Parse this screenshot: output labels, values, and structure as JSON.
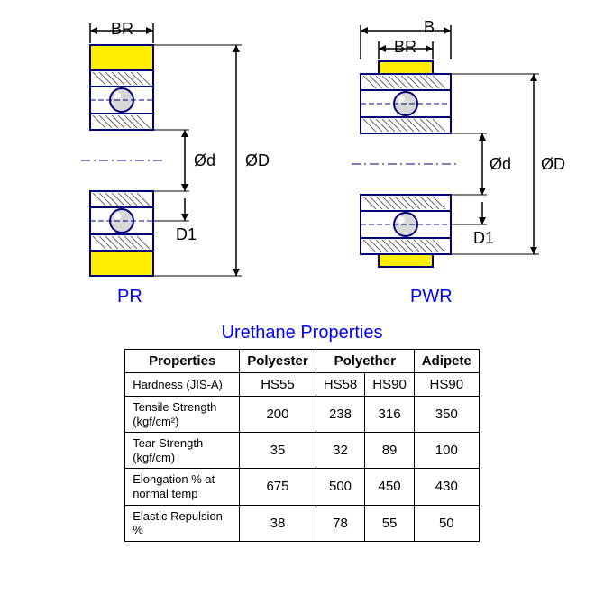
{
  "diagram_left": {
    "type_label": "PR",
    "labels": {
      "BR": "BR",
      "d": "Ød",
      "D": "ØD",
      "D1": "D1"
    },
    "colors": {
      "outline": "#00007a",
      "urethane": "#ffee00",
      "ball": "#c0c0c0",
      "hatch": "#666666",
      "dim": "#000000"
    },
    "stroke_width": 2
  },
  "diagram_right": {
    "type_label": "PWR",
    "labels": {
      "B": "B",
      "BR": "BR",
      "d": "Ød",
      "D": "ØD",
      "D1": "D1"
    },
    "colors": {
      "outline": "#00007a",
      "urethane": "#ffee00",
      "ball": "#c0c0c0",
      "hatch": "#666666",
      "dim": "#000000"
    },
    "stroke_width": 2
  },
  "table": {
    "title": "Urethane Properties",
    "header": [
      "Properties",
      "Polyester",
      "Polyether",
      "Adipete"
    ],
    "polyether_span": 2,
    "rows": [
      {
        "label": "Hardness (JIS-A)",
        "cells": [
          "HS55",
          "HS58",
          "HS90",
          "HS90"
        ]
      },
      {
        "label": "Tensile Strength (kgf/cm²)",
        "cells": [
          "200",
          "238",
          "316",
          "350"
        ]
      },
      {
        "label": "Tear Strength (kgf/cm)",
        "cells": [
          "35",
          "32",
          "89",
          "100"
        ]
      },
      {
        "label": "Elongation % at normal temp",
        "cells": [
          "675",
          "500",
          "450",
          "430"
        ]
      },
      {
        "label": "Elastic Repulsion %",
        "cells": [
          "38",
          "78",
          "55",
          "50"
        ]
      }
    ],
    "colors": {
      "border": "#000000",
      "title": "#0000ff",
      "text": "#000000",
      "bg": "#ffffff"
    },
    "font_size_header": 15,
    "font_size_cell": 15,
    "font_size_rowhead": 13
  }
}
